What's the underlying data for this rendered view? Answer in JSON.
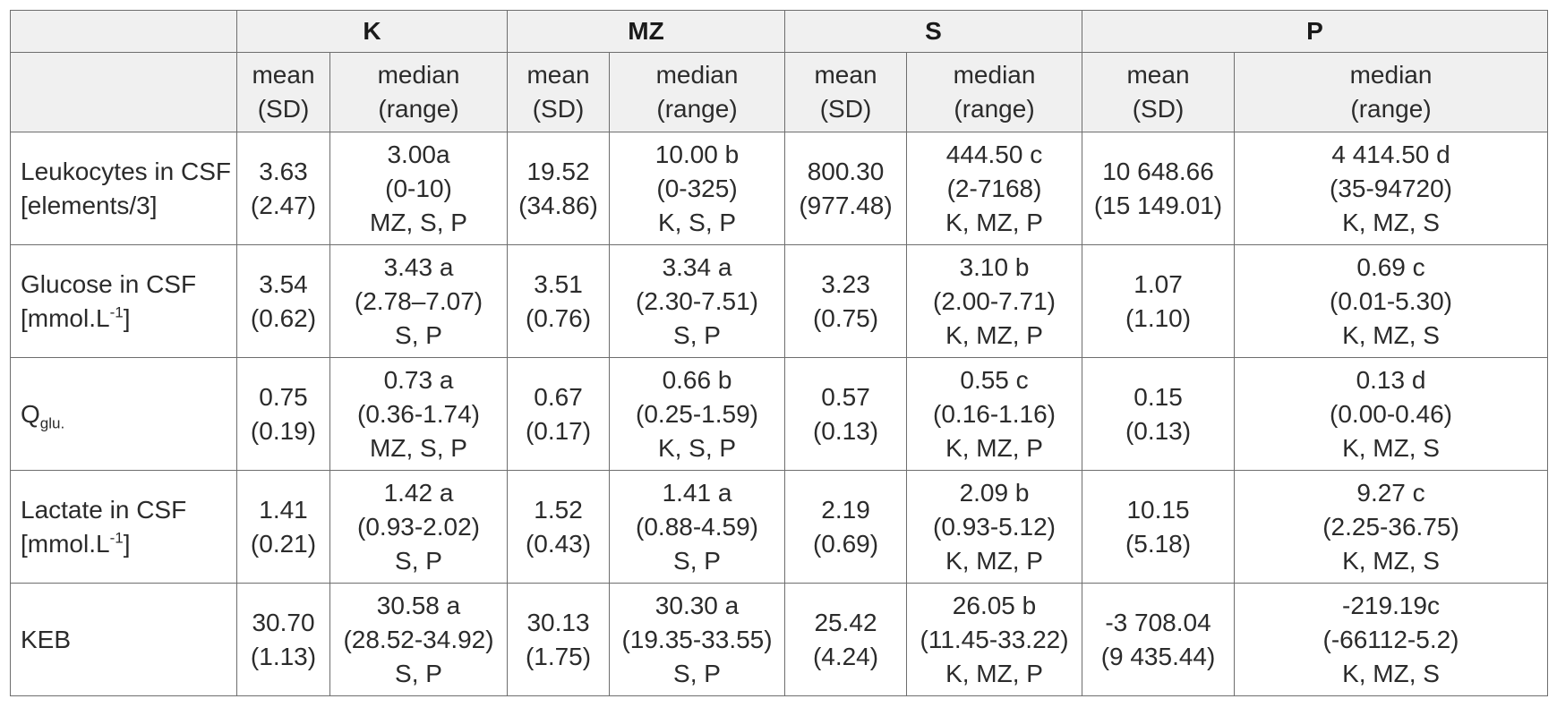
{
  "groups": [
    "K",
    "MZ",
    "S",
    "P"
  ],
  "stat_headers": {
    "mean": [
      "mean",
      "(SD)"
    ],
    "median": [
      "median",
      "(range)"
    ]
  },
  "rows": [
    {
      "label": [
        "Leukocytes in CSF",
        "[elements/3]"
      ],
      "cells": [
        [
          "3.63",
          "(2.47)"
        ],
        [
          "3.00a",
          "(0-10)",
          "MZ, S, P"
        ],
        [
          "19.52",
          "(34.86)"
        ],
        [
          "10.00 b",
          "(0-325)",
          "K, S, P"
        ],
        [
          "800.30",
          "(977.48)"
        ],
        [
          "444.50 c",
          "(2-7168)",
          "K, MZ, P"
        ],
        [
          "10 648.66",
          "(15 149.01)"
        ],
        [
          "4 414.50 d",
          "(35-94720)",
          "K, MZ, S"
        ]
      ]
    },
    {
      "label": [
        "Glucose in CSF",
        "[mmol.L",
        "-1",
        "]"
      ],
      "cells": [
        [
          "3.54",
          "(0.62)"
        ],
        [
          "3.43 a",
          "(2.78–7.07)",
          "S, P"
        ],
        [
          "3.51",
          "(0.76)"
        ],
        [
          "3.34 a",
          "(2.30-7.51)",
          "S, P"
        ],
        [
          "3.23",
          "(0.75)"
        ],
        [
          "3.10 b",
          "(2.00-7.71)",
          "K, MZ, P"
        ],
        [
          "1.07",
          "(1.10)"
        ],
        [
          "0.69 c",
          "(0.01-5.30)",
          "K, MZ, S"
        ]
      ]
    },
    {
      "label": [
        "Q",
        "glu."
      ],
      "cells": [
        [
          "0.75",
          "(0.19)"
        ],
        [
          "0.73 a",
          "(0.36-1.74)",
          "MZ, S, P"
        ],
        [
          "0.67",
          "(0.17)"
        ],
        [
          "0.66 b",
          "(0.25-1.59)",
          "K, S, P"
        ],
        [
          "0.57",
          "(0.13)"
        ],
        [
          "0.55 c",
          "(0.16-1.16)",
          "K, MZ, P"
        ],
        [
          "0.15",
          "(0.13)"
        ],
        [
          "0.13 d",
          "(0.00-0.46)",
          "K, MZ, S"
        ]
      ]
    },
    {
      "label": [
        "Lactate in CSF",
        "[mmol.L",
        "-1",
        "]"
      ],
      "cells": [
        [
          "1.41",
          "(0.21)"
        ],
        [
          "1.42 a",
          "(0.93-2.02)",
          "S, P"
        ],
        [
          "1.52",
          "(0.43)"
        ],
        [
          "1.41 a",
          "(0.88-4.59)",
          "S, P"
        ],
        [
          "2.19",
          "(0.69)"
        ],
        [
          "2.09 b",
          "(0.93-5.12)",
          "K, MZ, P"
        ],
        [
          "10.15",
          "(5.18)"
        ],
        [
          "9.27 c",
          "(2.25-36.75)",
          "K, MZ, S"
        ]
      ]
    },
    {
      "label": [
        "KEB"
      ],
      "cells": [
        [
          "30.70",
          "(1.13)"
        ],
        [
          "30.58 a",
          "(28.52-34.92)",
          "S, P"
        ],
        [
          "30.13",
          "(1.75)"
        ],
        [
          "30.30 a",
          "(19.35-33.55)",
          "S, P"
        ],
        [
          "25.42",
          "(4.24)"
        ],
        [
          "26.05 b",
          "(11.45-33.22)",
          "K, MZ, P"
        ],
        [
          "-3 708.04",
          "(9 435.44)"
        ],
        [
          "-219.19c",
          "(-66112-5.2)",
          "K, MZ, S"
        ]
      ]
    }
  ]
}
